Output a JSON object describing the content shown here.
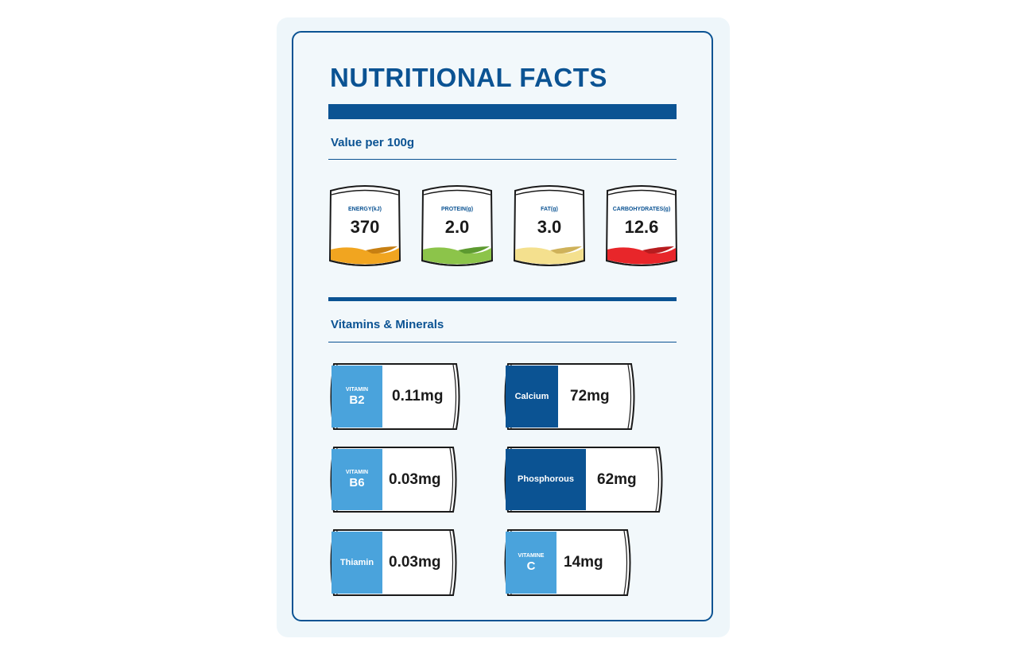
{
  "title": "NUTRITIONAL FACTS",
  "section_macros": "Value per 100g",
  "section_vitamins": "Vitamins & Minerals",
  "macros": [
    {
      "label": "ENERGY(kJ)",
      "value": "370",
      "color": "#f1a520",
      "shade": "#c77f12"
    },
    {
      "label": "PROTEIN(g)",
      "value": "2.0",
      "color": "#8cc44a",
      "shade": "#5d9a30"
    },
    {
      "label": "FAT(g)",
      "value": "3.0",
      "color": "#f4e08e",
      "shade": "#cfb25a"
    },
    {
      "label": "CARBOHYDRATES(g)",
      "value": "12.6",
      "color": "#e8262a",
      "shade": "#b71c1f"
    }
  ],
  "vitamins": [
    {
      "prefix": "VITAMIN",
      "name": "B2",
      "amount": "0.11mg",
      "tag_color": "#4aa3dc"
    },
    {
      "prefix": "",
      "name": "Calcium",
      "amount": "72mg",
      "tag_color": "#0b5393"
    },
    {
      "prefix": "VITAMIN",
      "name": "B6",
      "amount": "0.03mg",
      "tag_color": "#4aa3dc"
    },
    {
      "prefix": "",
      "name": "Phosphorous",
      "amount": "62mg",
      "tag_color": "#0b5393"
    },
    {
      "prefix": "",
      "name": "Thiamin",
      "amount": "0.03mg",
      "tag_color": "#4aa3dc"
    },
    {
      "prefix": "VITAMINE",
      "name": "C",
      "amount": "14mg",
      "tag_color": "#4aa3dc"
    }
  ],
  "colors": {
    "brand": "#0b5393"
  }
}
